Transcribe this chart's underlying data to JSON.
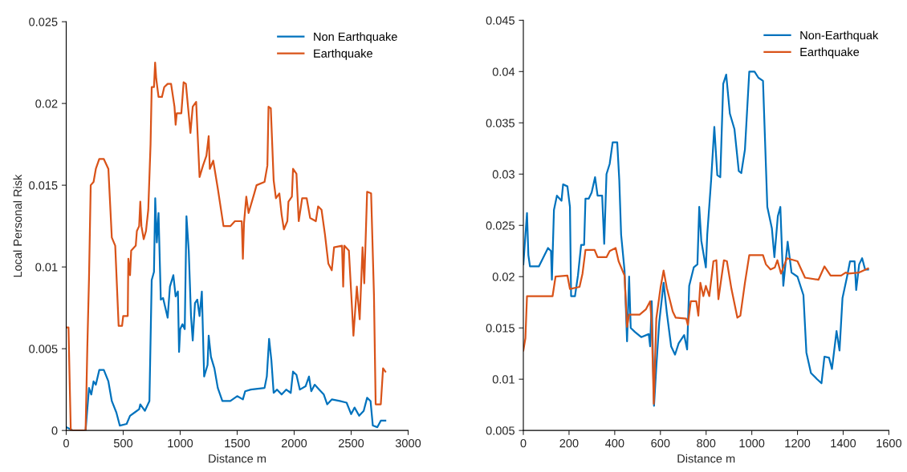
{
  "chart_data": [
    {
      "type": "line",
      "xlabel": "Distance m",
      "ylabel": "Local Personal Risk",
      "xlim": [
        0,
        3000
      ],
      "ylim": [
        0,
        0.025
      ],
      "xticks": [
        0,
        500,
        1000,
        1500,
        2000,
        2500,
        3000
      ],
      "yticks": [
        0,
        0.005,
        0.01,
        0.015,
        0.02,
        0.025
      ],
      "grid": false,
      "legend": "top right",
      "line_style": "solid",
      "marker": "none",
      "series": [
        {
          "name": "Non Earthquake",
          "color": "#0072bd",
          "x": [
            0,
            60,
            170,
            185,
            200,
            220,
            240,
            260,
            290,
            330,
            370,
            400,
            440,
            470,
            530,
            560,
            600,
            640,
            650,
            690,
            730,
            750,
            770,
            781,
            795,
            810,
            830,
            850,
            880,
            890,
            910,
            940,
            960,
            980,
            990,
            1000,
            1020,
            1040,
            1055,
            1075,
            1095,
            1110,
            1130,
            1150,
            1170,
            1190,
            1210,
            1240,
            1250,
            1270,
            1300,
            1330,
            1370,
            1440,
            1500,
            1550,
            1570,
            1620,
            1740,
            1760,
            1780,
            1800,
            1820,
            1850,
            1890,
            1930,
            1970,
            1990,
            2020,
            2050,
            2100,
            2130,
            2150,
            2180,
            2220,
            2260,
            2290,
            2330,
            2400,
            2460,
            2500,
            2530,
            2570,
            2610,
            2640,
            2670,
            2690,
            2730,
            2760,
            2800
          ],
          "values": [
            0.0002,
            0.0,
            0.0,
            0.0013,
            0.0026,
            0.0022,
            0.003,
            0.0028,
            0.0037,
            0.0037,
            0.003,
            0.0018,
            0.0011,
            0.0003,
            0.0004,
            0.0009,
            0.0011,
            0.0013,
            0.0016,
            0.0012,
            0.0018,
            0.0092,
            0.0097,
            0.0142,
            0.0115,
            0.0133,
            0.008,
            0.0081,
            0.0072,
            0.0069,
            0.0088,
            0.0095,
            0.0082,
            0.0085,
            0.0048,
            0.0062,
            0.0065,
            0.0062,
            0.0131,
            0.011,
            0.007,
            0.0055,
            0.0078,
            0.008,
            0.007,
            0.0085,
            0.0033,
            0.004,
            0.0058,
            0.0045,
            0.0038,
            0.0026,
            0.0018,
            0.0018,
            0.0021,
            0.0019,
            0.0024,
            0.0025,
            0.0026,
            0.0033,
            0.0056,
            0.0043,
            0.0023,
            0.0025,
            0.0022,
            0.0025,
            0.0023,
            0.0036,
            0.0034,
            0.0025,
            0.0027,
            0.0033,
            0.0024,
            0.0028,
            0.0025,
            0.0022,
            0.0016,
            0.0019,
            0.0018,
            0.0017,
            0.001,
            0.0014,
            0.0009,
            0.0012,
            0.002,
            0.0018,
            0.0003,
            0.0002,
            0.0006,
            0.0006
          ]
        },
        {
          "name": "Earthquake",
          "color": "#d95319",
          "x": [
            0,
            20,
            40,
            60,
            170,
            185,
            200,
            215,
            240,
            260,
            290,
            330,
            370,
            400,
            430,
            460,
            490,
            500,
            540,
            545,
            560,
            570,
            610,
            620,
            640,
            650,
            660,
            680,
            700,
            720,
            740,
            750,
            770,
            780,
            790,
            810,
            840,
            860,
            890,
            920,
            950,
            960,
            970,
            1010,
            1030,
            1050,
            1070,
            1090,
            1110,
            1140,
            1170,
            1200,
            1230,
            1250,
            1260,
            1290,
            1330,
            1380,
            1440,
            1480,
            1540,
            1550,
            1560,
            1580,
            1600,
            1650,
            1670,
            1740,
            1765,
            1775,
            1795,
            1820,
            1840,
            1870,
            1890,
            1910,
            1940,
            1950,
            1980,
            1990,
            2020,
            2040,
            2070,
            2110,
            2140,
            2190,
            2210,
            2240,
            2270,
            2300,
            2330,
            2350,
            2420,
            2430,
            2440,
            2480,
            2505,
            2520,
            2550,
            2575,
            2600,
            2615,
            2640,
            2675,
            2700,
            2715,
            2760,
            2780,
            2800
          ],
          "values": [
            0.0063,
            0.0063,
            0.0,
            0.0,
            0.0,
            0.005,
            0.0093,
            0.015,
            0.0152,
            0.016,
            0.0166,
            0.0166,
            0.016,
            0.0118,
            0.0113,
            0.0064,
            0.0064,
            0.007,
            0.007,
            0.0105,
            0.0095,
            0.011,
            0.0113,
            0.0122,
            0.0125,
            0.014,
            0.0125,
            0.0117,
            0.0122,
            0.0135,
            0.0175,
            0.021,
            0.021,
            0.0225,
            0.0215,
            0.0204,
            0.0204,
            0.021,
            0.0212,
            0.0212,
            0.0198,
            0.0187,
            0.0194,
            0.0194,
            0.0213,
            0.0212,
            0.0197,
            0.0182,
            0.0198,
            0.0201,
            0.0155,
            0.0162,
            0.0168,
            0.018,
            0.016,
            0.0165,
            0.0148,
            0.0125,
            0.0125,
            0.0128,
            0.0128,
            0.0105,
            0.0127,
            0.0143,
            0.0133,
            0.0145,
            0.015,
            0.0152,
            0.0162,
            0.0198,
            0.0197,
            0.0153,
            0.0142,
            0.0145,
            0.0132,
            0.0123,
            0.0128,
            0.014,
            0.0143,
            0.016,
            0.0157,
            0.0128,
            0.0142,
            0.0142,
            0.013,
            0.0128,
            0.0137,
            0.0135,
            0.012,
            0.0102,
            0.0098,
            0.0112,
            0.0113,
            0.0088,
            0.0113,
            0.011,
            0.0078,
            0.0058,
            0.0088,
            0.0068,
            0.0112,
            0.009,
            0.0146,
            0.0145,
            0.0083,
            0.0016,
            0.0016,
            0.0038,
            0.0036
          ]
        }
      ]
    },
    {
      "type": "line",
      "xlabel": "Distance m",
      "xlim": [
        0,
        1600
      ],
      "ylim": [
        0.005,
        0.045
      ],
      "xticks": [
        0,
        200,
        400,
        600,
        800,
        1000,
        1200,
        1400,
        1600
      ],
      "yticks": [
        0.005,
        0.01,
        0.015,
        0.02,
        0.025,
        0.03,
        0.035,
        0.04,
        0.045
      ],
      "grid": false,
      "legend": "top right",
      "line_style": "solid",
      "marker": "none",
      "series": [
        {
          "name": "Non-Earthquak",
          "color": "#0072bd",
          "x": [
            0,
            16,
            22,
            29,
            68,
            88,
            108,
            121,
            125,
            134,
            147,
            167,
            174,
            193,
            204,
            209,
            226,
            239,
            253,
            266,
            272,
            286,
            299,
            314,
            325,
            345,
            354,
            364,
            378,
            391,
            411,
            420,
            428,
            443,
            454,
            463,
            470,
            489,
            516,
            549,
            555,
            562,
            572,
            582,
            595,
            614,
            628,
            647,
            664,
            680,
            704,
            717,
            726,
            746,
            762,
            770,
            779,
            799,
            805,
            822,
            836,
            849,
            862,
            875,
            888,
            904,
            924,
            943,
            954,
            970,
            989,
            1012,
            1029,
            1049,
            1068,
            1088,
            1099,
            1114,
            1125,
            1138,
            1157,
            1174,
            1200,
            1226,
            1239,
            1259,
            1286,
            1305,
            1318,
            1338,
            1351,
            1371,
            1384,
            1397,
            1417,
            1430,
            1450,
            1457,
            1470,
            1483,
            1496,
            1509
          ],
          "values": [
            0.0212,
            0.0262,
            0.0221,
            0.021,
            0.021,
            0.0219,
            0.0228,
            0.0225,
            0.0197,
            0.0265,
            0.0279,
            0.0274,
            0.029,
            0.0288,
            0.0268,
            0.0181,
            0.0181,
            0.0201,
            0.0231,
            0.0231,
            0.0276,
            0.0276,
            0.0282,
            0.0297,
            0.0279,
            0.0279,
            0.0232,
            0.03,
            0.031,
            0.0331,
            0.0331,
            0.0294,
            0.0241,
            0.0206,
            0.0137,
            0.02,
            0.015,
            0.0146,
            0.0141,
            0.0144,
            0.0132,
            0.0176,
            0.0074,
            0.0112,
            0.0156,
            0.0194,
            0.0165,
            0.0132,
            0.0124,
            0.0135,
            0.0143,
            0.0129,
            0.0191,
            0.0209,
            0.0212,
            0.0268,
            0.0235,
            0.0209,
            0.0241,
            0.0294,
            0.0346,
            0.0299,
            0.0297,
            0.0388,
            0.0397,
            0.0359,
            0.0344,
            0.0303,
            0.0301,
            0.0324,
            0.04,
            0.04,
            0.0394,
            0.0391,
            0.0268,
            0.0247,
            0.0219,
            0.0259,
            0.0268,
            0.0191,
            0.0234,
            0.0204,
            0.02,
            0.0182,
            0.0126,
            0.0106,
            0.01,
            0.0096,
            0.0122,
            0.0121,
            0.011,
            0.0147,
            0.0128,
            0.0179,
            0.02,
            0.0215,
            0.0215,
            0.0187,
            0.0212,
            0.0218,
            0.0207,
            0.0207
          ]
        },
        {
          "name": "Earthquake",
          "color": "#d95319",
          "x": [
            0,
            9,
            16,
            128,
            141,
            193,
            204,
            246,
            259,
            272,
            312,
            325,
            364,
            378,
            404,
            417,
            443,
            454,
            463,
            509,
            536,
            555,
            562,
            571,
            582,
            601,
            614,
            628,
            654,
            667,
            713,
            720,
            733,
            757,
            766,
            775,
            788,
            799,
            814,
            832,
            845,
            854,
            864,
            878,
            891,
            911,
            937,
            950,
            970,
            989,
            1049,
            1062,
            1082,
            1101,
            1112,
            1128,
            1154,
            1200,
            1233,
            1292,
            1318,
            1345,
            1391,
            1411,
            1424,
            1470,
            1509
          ],
          "values": [
            0.0128,
            0.014,
            0.0181,
            0.0181,
            0.02,
            0.0201,
            0.0188,
            0.019,
            0.0203,
            0.0226,
            0.0226,
            0.0219,
            0.0219,
            0.0225,
            0.0228,
            0.0215,
            0.0201,
            0.0151,
            0.0163,
            0.0163,
            0.0168,
            0.0176,
            0.0154,
            0.0076,
            0.0159,
            0.019,
            0.0206,
            0.0189,
            0.0166,
            0.016,
            0.0159,
            0.0153,
            0.0176,
            0.0176,
            0.0162,
            0.0194,
            0.0181,
            0.0191,
            0.0181,
            0.0215,
            0.0216,
            0.0178,
            0.0194,
            0.0216,
            0.0215,
            0.0188,
            0.016,
            0.0162,
            0.0194,
            0.0221,
            0.0221,
            0.0212,
            0.0207,
            0.0209,
            0.0216,
            0.0203,
            0.0218,
            0.0215,
            0.0199,
            0.0197,
            0.021,
            0.0201,
            0.0201,
            0.0204,
            0.0203,
            0.0204,
            0.0208
          ]
        }
      ]
    }
  ]
}
